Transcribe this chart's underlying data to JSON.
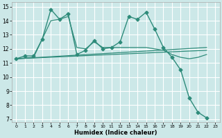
{
  "xlabel": "Humidex (Indice chaleur)",
  "bg_color": "#cce8e8",
  "grid_color": "#ffffff",
  "line_color": "#2e8b7a",
  "xlim": [
    -0.5,
    23.5
  ],
  "ylim": [
    6.8,
    15.3
  ],
  "xticks": [
    0,
    1,
    2,
    3,
    4,
    5,
    6,
    7,
    8,
    9,
    10,
    11,
    12,
    13,
    14,
    15,
    16,
    17,
    18,
    19,
    20,
    21,
    22,
    23
  ],
  "yticks": [
    7,
    8,
    9,
    10,
    11,
    12,
    13,
    14,
    15
  ],
  "series": [
    {
      "x": [
        0,
        1,
        2,
        3,
        4,
        5,
        6,
        7,
        8,
        9,
        10,
        11,
        12,
        13,
        14,
        15,
        16,
        17,
        18,
        19,
        20,
        21,
        22
      ],
      "y": [
        11.3,
        11.5,
        11.5,
        12.7,
        14.8,
        14.1,
        14.5,
        11.6,
        11.9,
        12.6,
        12.0,
        12.1,
        12.5,
        14.3,
        14.1,
        14.6,
        13.4,
        12.1,
        11.4,
        10.5,
        8.5,
        7.5,
        7.1
      ],
      "marker": "D",
      "markersize": 2.5,
      "linewidth": 1.0
    },
    {
      "x": [
        0,
        2,
        4,
        5,
        6,
        7,
        8,
        9,
        10,
        11,
        12,
        13,
        14,
        15,
        16,
        17,
        18,
        19,
        20,
        21,
        22
      ],
      "y": [
        11.3,
        11.4,
        14.0,
        14.1,
        14.3,
        12.1,
        12.0,
        12.5,
        12.1,
        12.1,
        12.1,
        12.1,
        12.1,
        12.1,
        12.0,
        11.9,
        11.6,
        11.4,
        11.3,
        11.4,
        11.6
      ],
      "marker": null,
      "markersize": 0,
      "linewidth": 0.9
    },
    {
      "x": [
        0,
        22
      ],
      "y": [
        11.3,
        11.9
      ],
      "marker": null,
      "markersize": 0,
      "linewidth": 0.9
    },
    {
      "x": [
        0,
        22
      ],
      "y": [
        11.3,
        12.1
      ],
      "marker": null,
      "markersize": 0,
      "linewidth": 0.9
    }
  ]
}
